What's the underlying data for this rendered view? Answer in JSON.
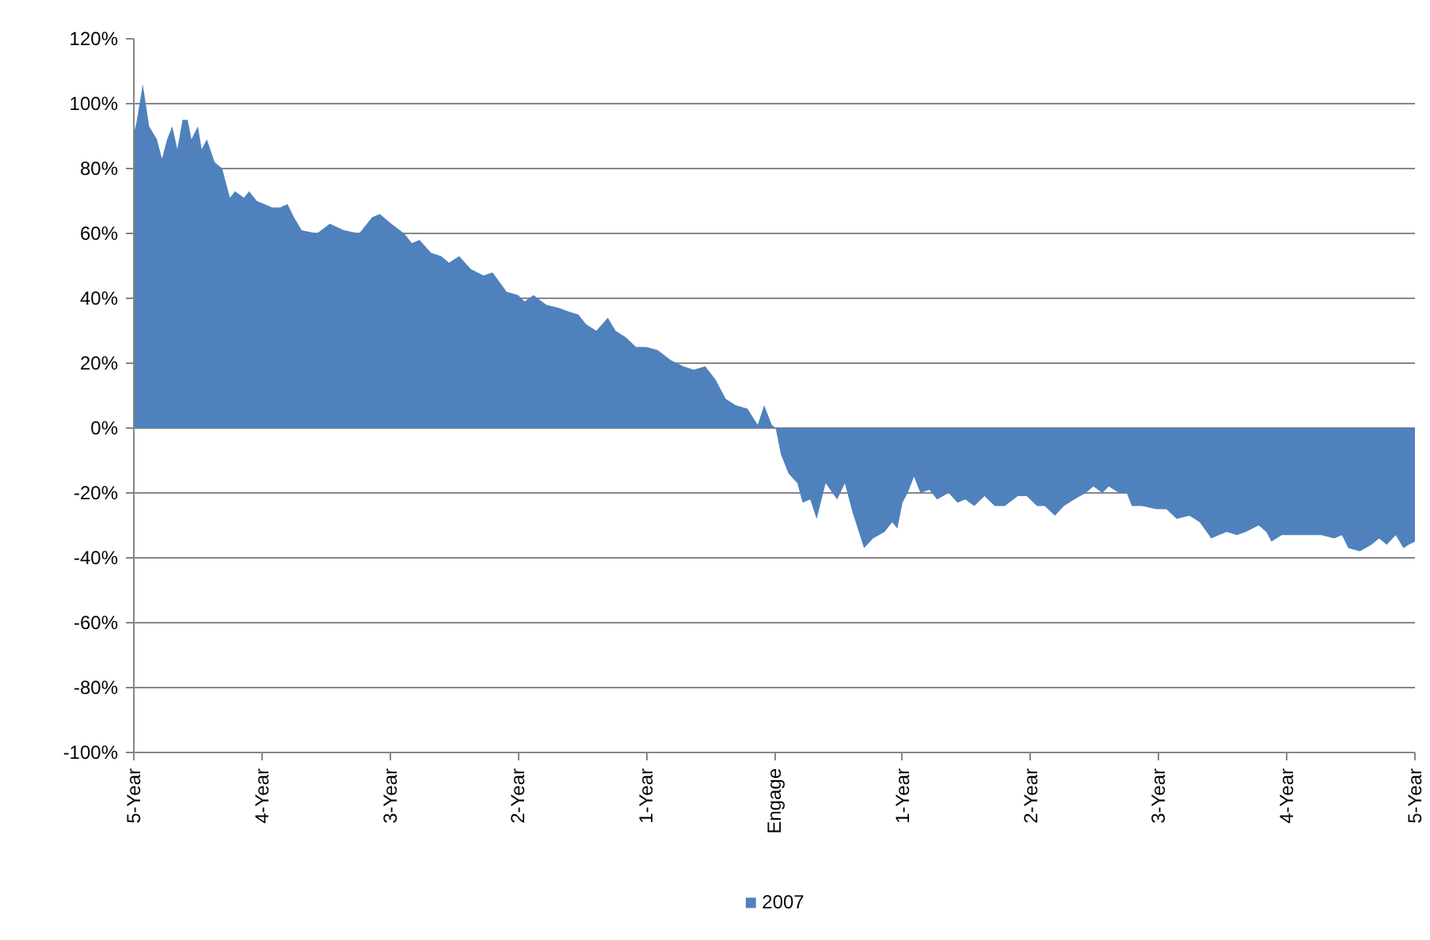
{
  "chart_data": {
    "type": "area",
    "x": [
      -5.0,
      -4.98,
      -4.93,
      -4.88,
      -4.82,
      -4.78,
      -4.74,
      -4.7,
      -4.66,
      -4.62,
      -4.58,
      -4.55,
      -4.5,
      -4.47,
      -4.43,
      -4.37,
      -4.31,
      -4.25,
      -4.21,
      -4.14,
      -4.1,
      -4.04,
      -3.98,
      -3.92,
      -3.86,
      -3.8,
      -3.75,
      -3.69,
      -3.57,
      -3.47,
      -3.36,
      -3.24,
      -3.14,
      -3.08,
      -2.99,
      -2.89,
      -2.83,
      -2.77,
      -2.68,
      -2.6,
      -2.54,
      -2.46,
      -2.37,
      -2.27,
      -2.2,
      -2.09,
      -2.0,
      -1.95,
      -1.88,
      -1.78,
      -1.68,
      -1.61,
      -1.53,
      -1.47,
      -1.39,
      -1.3,
      -1.24,
      -1.16,
      -1.08,
      -1.0,
      -0.91,
      -0.81,
      -0.71,
      -0.63,
      -0.54,
      -0.46,
      -0.38,
      -0.3,
      -0.21,
      -0.13,
      -0.08,
      -0.02,
      0.01,
      0.05,
      0.11,
      0.18,
      0.22,
      0.28,
      0.33,
      0.4,
      0.49,
      0.55,
      0.61,
      0.7,
      0.77,
      0.86,
      0.92,
      0.96,
      1.0,
      1.04,
      1.09,
      1.14,
      1.21,
      1.27,
      1.36,
      1.43,
      1.49,
      1.56,
      1.64,
      1.72,
      1.8,
      1.9,
      1.97,
      2.05,
      2.11,
      2.19,
      2.26,
      2.34,
      2.43,
      2.49,
      2.56,
      2.61,
      2.69,
      2.75,
      2.79,
      2.87,
      2.98,
      3.06,
      3.14,
      3.24,
      3.32,
      3.41,
      3.47,
      3.53,
      3.61,
      3.68,
      3.78,
      3.84,
      3.88,
      3.96,
      4.07,
      4.17,
      4.27,
      4.37,
      4.43,
      4.48,
      4.57,
      4.66,
      4.72,
      4.78,
      4.85,
      4.91,
      4.95,
      5.0
    ],
    "series": [
      {
        "name": "2007",
        "color": "#4f81bd",
        "values": [
          91,
          94,
          106,
          93,
          89,
          83,
          89,
          93,
          86,
          95,
          95,
          89,
          93,
          86,
          89,
          82,
          80,
          71,
          73,
          71,
          73,
          70,
          69,
          68,
          68,
          69,
          65,
          61,
          60,
          63,
          61,
          60,
          65,
          66,
          63,
          60,
          57,
          58,
          54,
          53,
          51,
          53,
          49,
          47,
          48,
          42,
          41,
          39,
          41,
          38,
          37,
          36,
          35,
          32,
          30,
          34,
          30,
          28,
          25,
          25,
          24,
          21,
          19,
          18,
          19,
          15,
          9,
          7,
          6,
          1,
          7,
          1,
          0,
          -8,
          -14,
          -17,
          -23,
          -22,
          -28,
          -17,
          -22,
          -17,
          -26,
          -37,
          -34,
          -32,
          -29,
          -31,
          -23,
          -20,
          -15,
          -20,
          -19,
          -22,
          -20,
          -23,
          -22,
          -24,
          -21,
          -24,
          -24,
          -21,
          -21,
          -24,
          -24,
          -27,
          -24,
          -22,
          -20,
          -18,
          -20,
          -18,
          -20,
          -20,
          -24,
          -24,
          -25,
          -25,
          -28,
          -27,
          -29,
          -34,
          -33,
          -32,
          -33,
          -32,
          -30,
          -32,
          -35,
          -33,
          -33,
          -33,
          -33,
          -34,
          -33,
          -37,
          -38,
          -36,
          -34,
          -36,
          -33,
          -37,
          -36,
          -35
        ]
      }
    ],
    "xlim": [
      -5,
      5
    ],
    "xticks": [
      {
        "value": -5,
        "label": "5-Year"
      },
      {
        "value": -4,
        "label": "4-Year"
      },
      {
        "value": -3,
        "label": "3-Year"
      },
      {
        "value": -2,
        "label": "2-Year"
      },
      {
        "value": -1,
        "label": "1-Year"
      },
      {
        "value": 0,
        "label": "Engage"
      },
      {
        "value": 1,
        "label": "1-Year"
      },
      {
        "value": 2,
        "label": "2-Year"
      },
      {
        "value": 3,
        "label": "3-Year"
      },
      {
        "value": 4,
        "label": "4-Year"
      },
      {
        "value": 5,
        "label": "5-Year"
      }
    ],
    "ylim": [
      -100,
      120
    ],
    "yticks": [
      {
        "value": -100,
        "label": "-100%"
      },
      {
        "value": -80,
        "label": "-80%"
      },
      {
        "value": -60,
        "label": "-60%"
      },
      {
        "value": -40,
        "label": "-40%"
      },
      {
        "value": -20,
        "label": "-20%"
      },
      {
        "value": 0,
        "label": "0%"
      },
      {
        "value": 20,
        "label": "20%"
      },
      {
        "value": 40,
        "label": "40%"
      },
      {
        "value": 60,
        "label": "60%"
      },
      {
        "value": 80,
        "label": "80%"
      },
      {
        "value": 100,
        "label": "100%"
      },
      {
        "value": 120,
        "label": "120%"
      }
    ],
    "grid": "y",
    "legend": "bottom"
  }
}
